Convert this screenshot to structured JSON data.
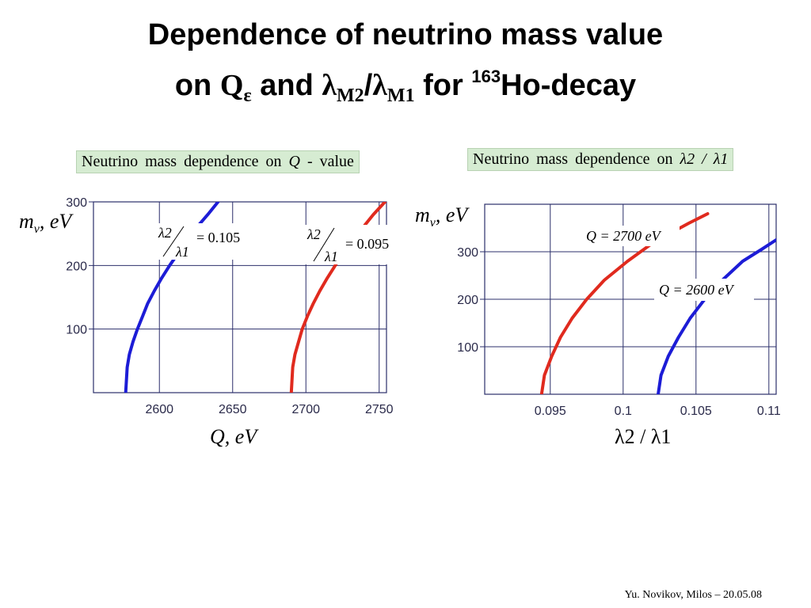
{
  "slide": {
    "title_line1": "Dependence of neutrino mass value",
    "title_on": "on",
    "title_Q": "Q",
    "title_Q_sub": "ε",
    "title_and": "and",
    "title_lambda": "λ",
    "title_M2": "M2",
    "title_slash": "/",
    "title_M1": "M1",
    "title_for": "for",
    "title_mass_number": "163",
    "title_element": "Ho-decay",
    "footer": "Yu. Novikov, Milos – 20.05.08"
  },
  "chart_data": [
    {
      "type": "line",
      "panel_label": "Neutrino mass dependence on",
      "panel_label_var": "Q",
      "panel_label_suffix": "- value",
      "xlabel": "Q, eV",
      "ylabel": "mν, eV",
      "ylabel_m": "m",
      "ylabel_nu": "ν",
      "ylabel_unit": ", eV",
      "xlim": [
        2555,
        2755
      ],
      "ylim": [
        0,
        300
      ],
      "xticks": [
        "2600",
        "2650",
        "2700",
        "2750"
      ],
      "yticks": [
        "100",
        "200",
        "300"
      ],
      "grid": true,
      "series": [
        {
          "color": "#1c1cd6",
          "annotation_num": "λ2",
          "annotation_den": "λ1",
          "annotation_value": "= 0.105",
          "points": [
            [
              2577,
              0
            ],
            [
              2578,
              40
            ],
            [
              2579.5,
              60
            ],
            [
              2582,
              80
            ],
            [
              2585,
              100
            ],
            [
              2588.5,
              120
            ],
            [
              2592,
              140
            ],
            [
              2596.5,
              160
            ],
            [
              2601.5,
              180
            ],
            [
              2607,
              200
            ],
            [
              2613,
              220
            ],
            [
              2619,
              240
            ],
            [
              2625.5,
              260
            ],
            [
              2633,
              280
            ],
            [
              2640,
              300
            ]
          ]
        },
        {
          "color": "#e02a1e",
          "annotation_num": "λ2",
          "annotation_den": "λ1",
          "annotation_value": "= 0.095",
          "points": [
            [
              2690,
              0
            ],
            [
              2691,
              40
            ],
            [
              2692.5,
              60
            ],
            [
              2695,
              80
            ],
            [
              2697.5,
              100
            ],
            [
              2701,
              120
            ],
            [
              2705,
              140
            ],
            [
              2709.5,
              160
            ],
            [
              2714.5,
              180
            ],
            [
              2720,
              200
            ],
            [
              2726,
              220
            ],
            [
              2732,
              240
            ],
            [
              2739,
              260
            ],
            [
              2746,
              280
            ],
            [
              2754,
              300
            ]
          ]
        }
      ]
    },
    {
      "type": "line",
      "panel_label": "Neutrino mass dependence on",
      "panel_label_var": "λ2 / λ1",
      "xlabel": "λ2 / λ1",
      "ylabel": "mν, eV",
      "ylabel_m": "m",
      "ylabel_nu": "ν",
      "ylabel_unit": ", eV",
      "xlim": [
        0.0905,
        0.1105
      ],
      "ylim": [
        0,
        400
      ],
      "xticks": [
        "0.095",
        "0.1",
        "0.105",
        "0.11"
      ],
      "yticks": [
        "100",
        "200",
        "300"
      ],
      "grid": true,
      "series": [
        {
          "color": "#e02a1e",
          "annotation": "Q = 2700 eV",
          "points": [
            [
              0.0944,
              0
            ],
            [
              0.0946,
              40
            ],
            [
              0.0951,
              80
            ],
            [
              0.0957,
              120
            ],
            [
              0.0965,
              160
            ],
            [
              0.0975,
              200
            ],
            [
              0.0987,
              240
            ],
            [
              0.1003,
              280
            ],
            [
              0.1021,
              320
            ],
            [
              0.1045,
              360
            ],
            [
              0.1058,
              380
            ]
          ]
        },
        {
          "color": "#1c1cd6",
          "annotation": "Q = 2600 eV",
          "points": [
            [
              0.1024,
              0
            ],
            [
              0.1026,
              40
            ],
            [
              0.1031,
              80
            ],
            [
              0.1038,
              120
            ],
            [
              0.1046,
              160
            ],
            [
              0.1056,
              200
            ],
            [
              0.1068,
              240
            ],
            [
              0.1082,
              280
            ],
            [
              0.1095,
              305
            ],
            [
              0.1105,
              325
            ]
          ]
        }
      ]
    }
  ]
}
